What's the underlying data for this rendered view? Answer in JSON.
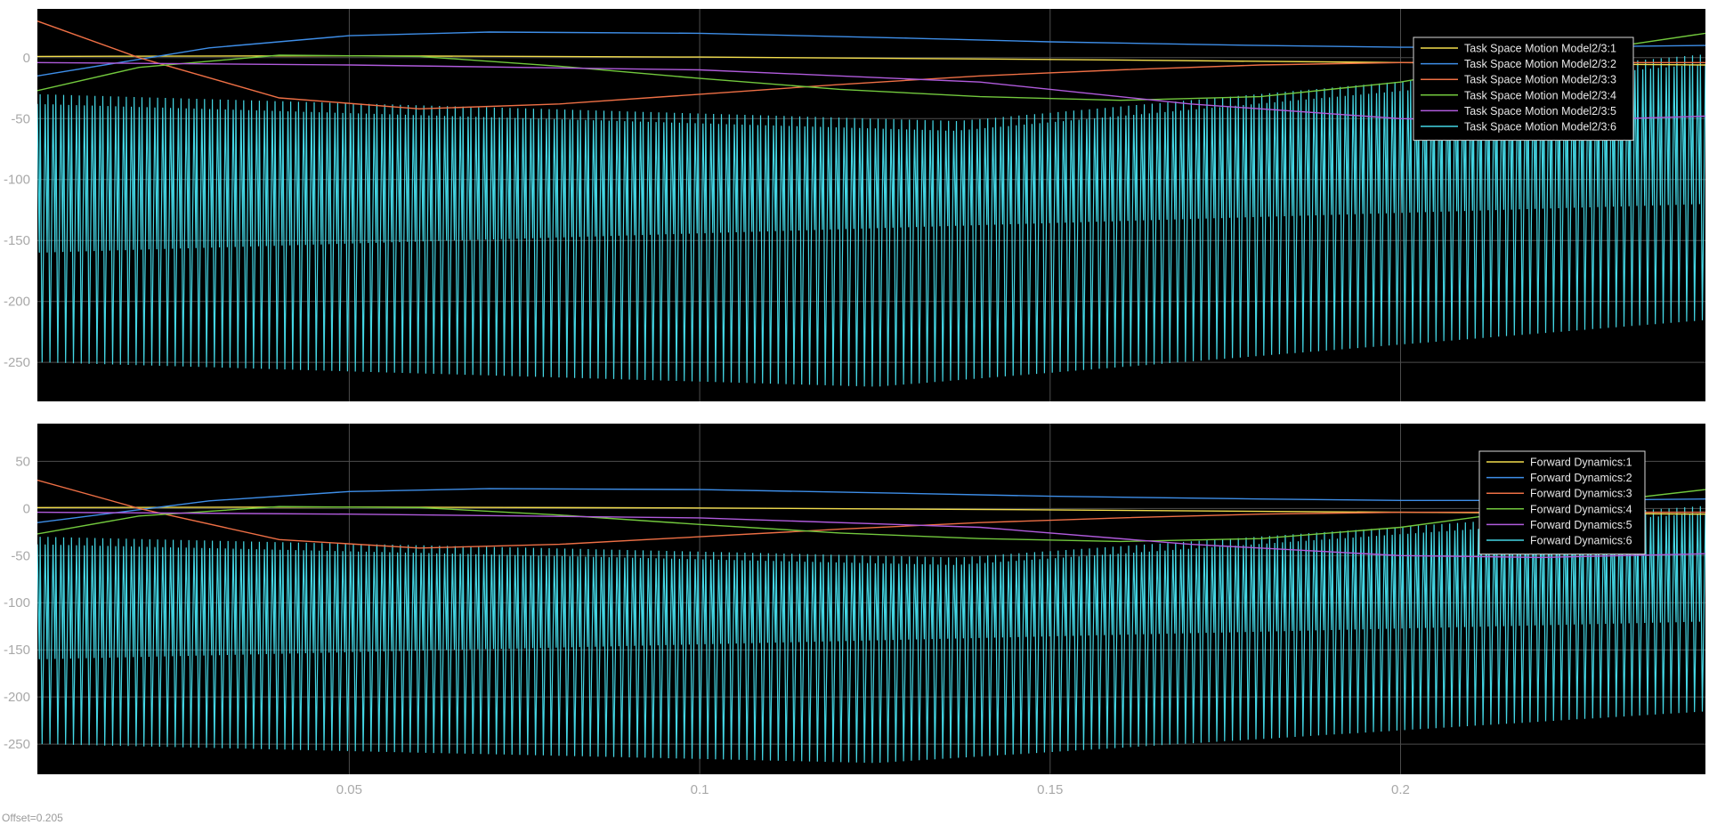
{
  "offset_text": "Offset=0.205",
  "chart_data": [
    {
      "type": "line",
      "xlim": [
        0.0055,
        0.2435
      ],
      "ylim": [
        -282,
        40
      ],
      "grid": true,
      "x_ticks": [
        {
          "value": 0.05,
          "label": "0.05"
        },
        {
          "value": 0.1,
          "label": "0.1"
        },
        {
          "value": 0.15,
          "label": "0.15"
        },
        {
          "value": 0.2,
          "label": "0.2"
        }
      ],
      "y_ticks": [
        {
          "value": 0,
          "label": "0"
        },
        {
          "value": -50,
          "label": "-50"
        },
        {
          "value": -100,
          "label": "-100"
        },
        {
          "value": -150,
          "label": "-150"
        },
        {
          "value": -200,
          "label": "-200"
        },
        {
          "value": -250,
          "label": "-250"
        }
      ],
      "legend_position": "top-right",
      "series": [
        {
          "name": "Task Space Motion Model2/3:1",
          "color": "#f2dd4c",
          "x": [
            0.0055,
            0.05,
            0.1,
            0.15,
            0.2,
            0.2435
          ],
          "y": [
            1,
            1.5,
            0.5,
            -1.5,
            -4,
            -6
          ]
        },
        {
          "name": "Task Space Motion Model2/3:2",
          "color": "#3e8ee8",
          "x": [
            0.0055,
            0.03,
            0.05,
            0.07,
            0.1,
            0.13,
            0.15,
            0.18,
            0.2,
            0.22,
            0.2435
          ],
          "y": [
            -15,
            8,
            18,
            21,
            20,
            16,
            13,
            10,
            8.5,
            8.5,
            10
          ]
        },
        {
          "name": "Task Space Motion Model2/3:3",
          "color": "#ee6f45",
          "x": [
            0.0055,
            0.02,
            0.04,
            0.06,
            0.08,
            0.1,
            0.12,
            0.14,
            0.16,
            0.18,
            0.2,
            0.2435
          ],
          "y": [
            30,
            0,
            -33,
            -42,
            -38,
            -30,
            -22,
            -15,
            -10,
            -6,
            -4,
            -4
          ]
        },
        {
          "name": "Task Space Motion Model2/3:4",
          "color": "#72c83d",
          "x": [
            0.0055,
            0.02,
            0.04,
            0.06,
            0.08,
            0.1,
            0.12,
            0.14,
            0.16,
            0.18,
            0.2,
            0.22,
            0.2435
          ],
          "y": [
            -27,
            -8,
            2,
            1,
            -7,
            -17,
            -26,
            -32,
            -35,
            -32,
            -20,
            0,
            20
          ]
        },
        {
          "name": "Task Space Motion Model2/3:5",
          "color": "#b05bdc",
          "x": [
            0.0055,
            0.05,
            0.1,
            0.14,
            0.17,
            0.2,
            0.22,
            0.2435
          ],
          "y": [
            -4,
            -6,
            -10,
            -20,
            -38,
            -50,
            -52,
            -48
          ]
        },
        {
          "name": "Task Space Motion Model2/3:6",
          "color": "#44d6e4",
          "oscillation": {
            "count": 213,
            "top_start": -38,
            "top_min": -60,
            "top_end": -5,
            "bottom_start": -250,
            "bottom_min": -270,
            "bottom_end": -215,
            "inner_start": -160,
            "inner_end": -120
          }
        }
      ]
    },
    {
      "type": "line",
      "xlim": [
        0.0055,
        0.2435
      ],
      "ylim": [
        -282,
        90
      ],
      "grid": true,
      "x_ticks": [
        {
          "value": 0.05,
          "label": "0.05"
        },
        {
          "value": 0.1,
          "label": "0.1"
        },
        {
          "value": 0.15,
          "label": "0.15"
        },
        {
          "value": 0.2,
          "label": "0.2"
        }
      ],
      "y_ticks": [
        {
          "value": 50,
          "label": "50"
        },
        {
          "value": 0,
          "label": "0"
        },
        {
          "value": -50,
          "label": "-50"
        },
        {
          "value": -100,
          "label": "-100"
        },
        {
          "value": -150,
          "label": "-150"
        },
        {
          "value": -200,
          "label": "-200"
        },
        {
          "value": -250,
          "label": "-250"
        }
      ],
      "legend_position": "top-right",
      "series": [
        {
          "name": "Forward Dynamics:1",
          "color": "#f2dd4c",
          "x": [
            0.0055,
            0.05,
            0.1,
            0.15,
            0.2,
            0.2435
          ],
          "y": [
            1,
            1.5,
            0.5,
            -1.5,
            -4,
            -6
          ]
        },
        {
          "name": "Forward Dynamics:2",
          "color": "#3e8ee8",
          "x": [
            0.0055,
            0.03,
            0.05,
            0.07,
            0.1,
            0.13,
            0.15,
            0.18,
            0.2,
            0.22,
            0.2435
          ],
          "y": [
            -15,
            8,
            18,
            21,
            20,
            16,
            13,
            10,
            8.5,
            8.5,
            10
          ]
        },
        {
          "name": "Forward Dynamics:3",
          "color": "#ee6f45",
          "x": [
            0.0055,
            0.02,
            0.04,
            0.06,
            0.08,
            0.1,
            0.12,
            0.14,
            0.16,
            0.18,
            0.2,
            0.2435
          ],
          "y": [
            30,
            0,
            -33,
            -42,
            -38,
            -30,
            -22,
            -15,
            -10,
            -6,
            -4,
            -4
          ]
        },
        {
          "name": "Forward Dynamics:4",
          "color": "#72c83d",
          "x": [
            0.0055,
            0.02,
            0.04,
            0.06,
            0.08,
            0.1,
            0.12,
            0.14,
            0.16,
            0.18,
            0.2,
            0.22,
            0.2435
          ],
          "y": [
            -27,
            -8,
            2,
            1,
            -7,
            -17,
            -26,
            -32,
            -35,
            -32,
            -20,
            0,
            20
          ]
        },
        {
          "name": "Forward Dynamics:5",
          "color": "#b05bdc",
          "x": [
            0.0055,
            0.05,
            0.1,
            0.14,
            0.17,
            0.2,
            0.22,
            0.2435
          ],
          "y": [
            -4,
            -6,
            -10,
            -20,
            -38,
            -50,
            -52,
            -48
          ]
        },
        {
          "name": "Forward Dynamics:6",
          "color": "#44d6e4",
          "oscillation": {
            "count": 213,
            "top_start": -38,
            "top_min": -60,
            "top_end": -5,
            "bottom_start": -250,
            "bottom_min": -270,
            "bottom_end": -215,
            "inner_start": -160,
            "inner_end": -120
          }
        }
      ]
    }
  ]
}
